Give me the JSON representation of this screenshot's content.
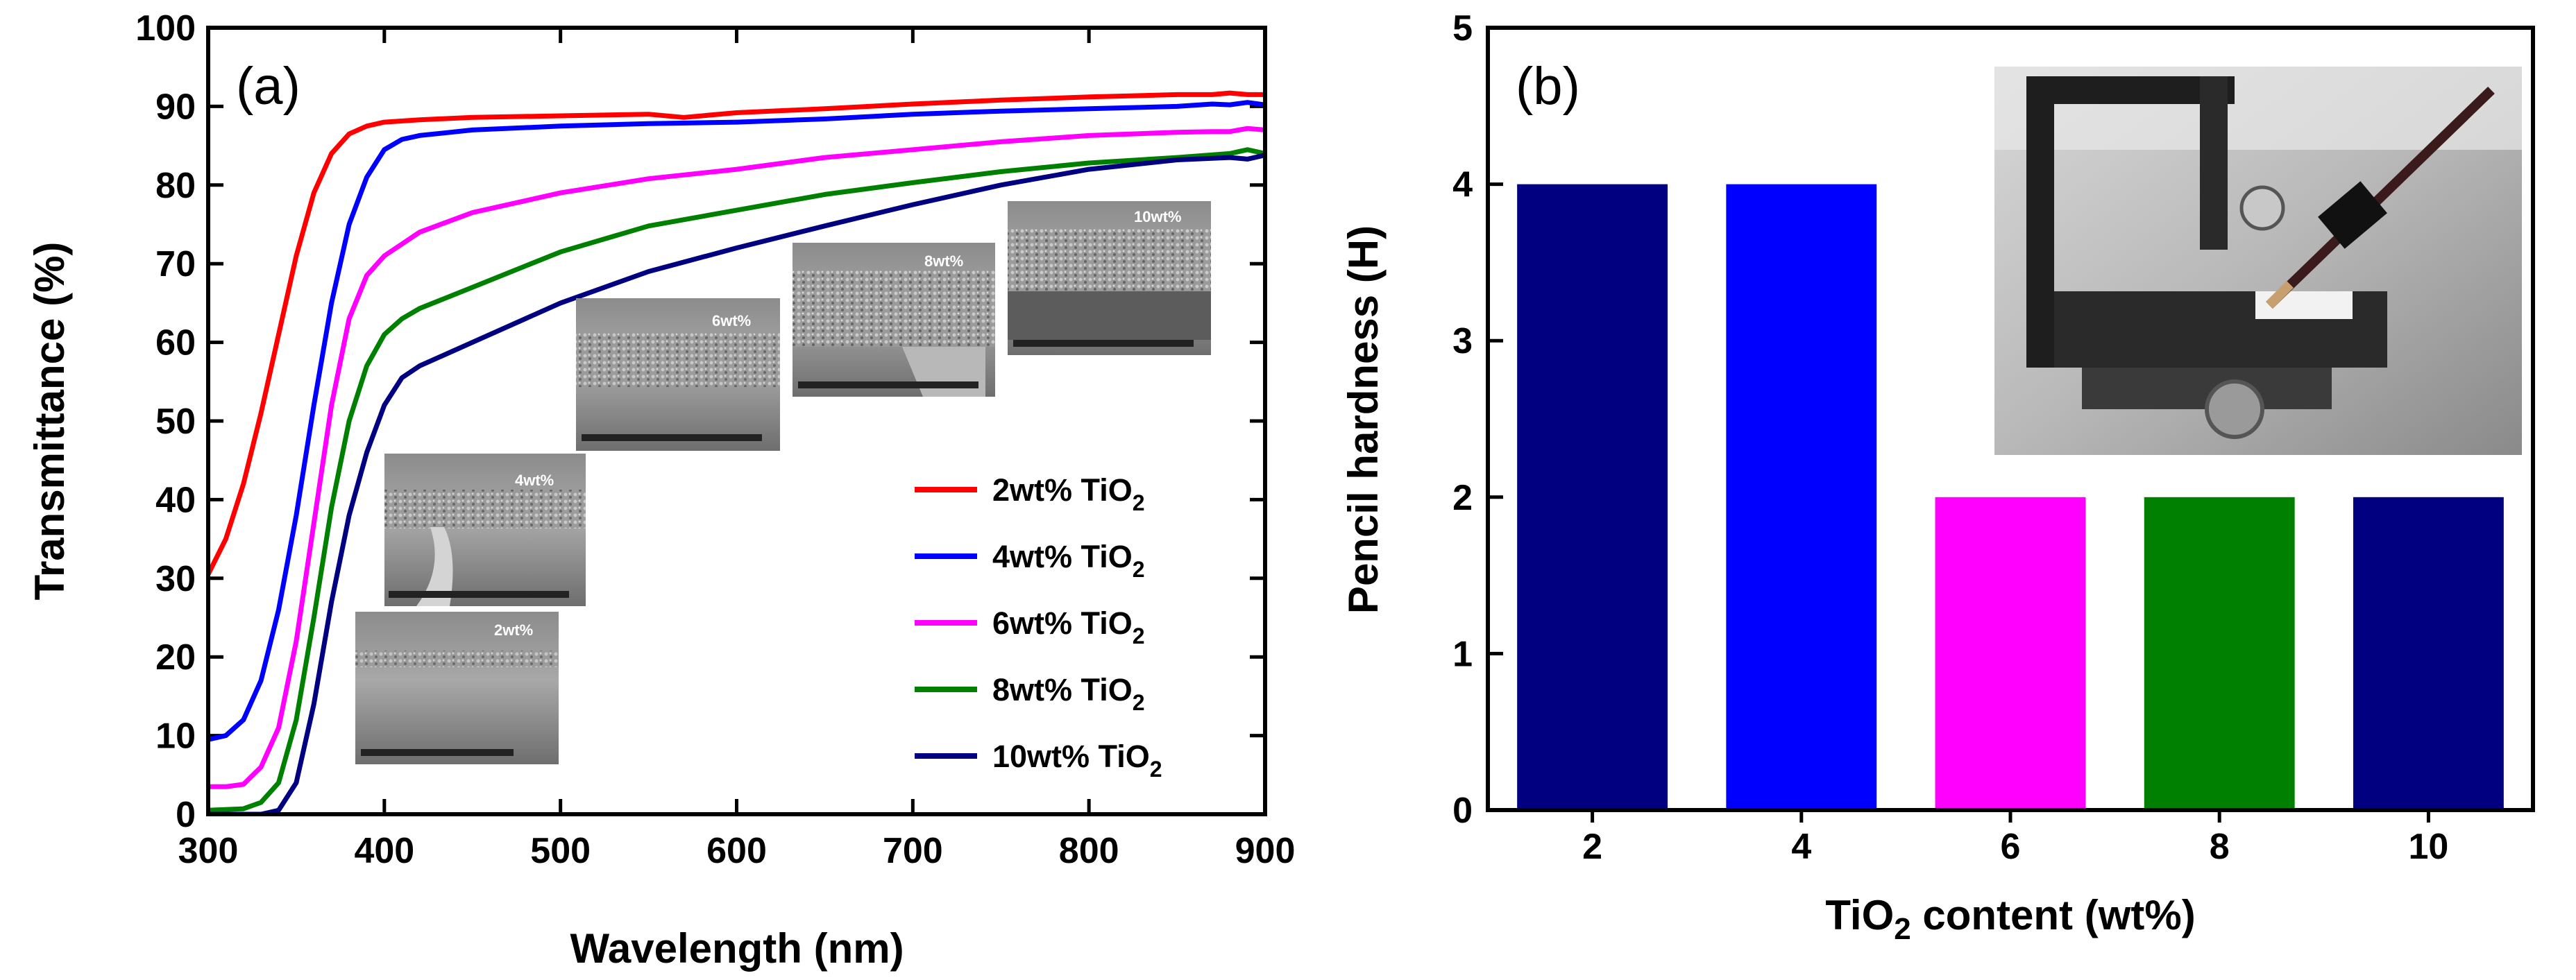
{
  "colors": {
    "c2": "#ff0000",
    "c4": "#0000ff",
    "c6": "#ff00ff",
    "c8": "#008000",
    "c10": "#000080"
  },
  "chart_data": [
    {
      "type": "line",
      "panel_label": "(a)",
      "xlabel": "Wavelength (nm)",
      "ylabel": "Transmittance (%)",
      "xlim": [
        300,
        900
      ],
      "ylim": [
        0,
        100
      ],
      "xticks": [
        300,
        400,
        500,
        600,
        700,
        800,
        900
      ],
      "yticks": [
        0,
        10,
        20,
        30,
        40,
        50,
        60,
        70,
        80,
        90,
        100
      ],
      "legend_position": "right-middle",
      "series": [
        {
          "name": "2wt% TiO2",
          "legend_main": "2wt% TiO",
          "legend_sub": "2",
          "color": "#ff0000",
          "x": [
            300,
            310,
            320,
            330,
            340,
            350,
            360,
            370,
            380,
            390,
            400,
            420,
            450,
            500,
            550,
            570,
            600,
            650,
            700,
            750,
            800,
            850,
            860,
            870,
            880,
            890,
            900
          ],
          "y": [
            30.5,
            35,
            42,
            51,
            61,
            71,
            79,
            84,
            86.5,
            87.5,
            88,
            88.3,
            88.6,
            88.8,
            89,
            88.6,
            89.2,
            89.7,
            90.3,
            90.8,
            91.2,
            91.5,
            91.5,
            91.5,
            91.7,
            91.5,
            91.5
          ]
        },
        {
          "name": "4wt% TiO2",
          "legend_main": "4wt% TiO",
          "legend_sub": "2",
          "color": "#0000ff",
          "x": [
            300,
            310,
            320,
            330,
            340,
            350,
            360,
            370,
            380,
            390,
            400,
            410,
            420,
            450,
            500,
            550,
            600,
            650,
            700,
            750,
            800,
            850,
            870,
            880,
            890,
            900
          ],
          "y": [
            9.5,
            10,
            12,
            17,
            26,
            38,
            52,
            65,
            75,
            81,
            84.5,
            85.8,
            86.3,
            87,
            87.5,
            87.8,
            88,
            88.4,
            89,
            89.4,
            89.7,
            90,
            90.3,
            90.2,
            90.5,
            90.2
          ]
        },
        {
          "name": "6wt% TiO2",
          "legend_main": "6wt% TiO",
          "legend_sub": "2",
          "color": "#ff00ff",
          "x": [
            300,
            310,
            320,
            330,
            340,
            350,
            360,
            370,
            380,
            390,
            400,
            410,
            420,
            450,
            500,
            550,
            600,
            650,
            700,
            750,
            800,
            850,
            870,
            880,
            890,
            900
          ],
          "y": [
            3.5,
            3.5,
            3.8,
            6,
            11,
            22,
            37,
            52,
            63,
            68.5,
            71,
            72.5,
            74,
            76.5,
            79,
            80.8,
            82,
            83.5,
            84.5,
            85.5,
            86.3,
            86.7,
            86.8,
            86.8,
            87.2,
            87
          ]
        },
        {
          "name": "8wt% TiO2",
          "legend_main": "8wt% TiO",
          "legend_sub": "2",
          "color": "#008000",
          "x": [
            300,
            320,
            330,
            340,
            350,
            360,
            370,
            380,
            390,
            400,
            410,
            420,
            450,
            500,
            550,
            600,
            650,
            700,
            750,
            800,
            850,
            880,
            890,
            900
          ],
          "y": [
            0.5,
            0.7,
            1.5,
            4,
            12,
            25,
            39,
            50,
            57,
            61,
            63,
            64.3,
            67,
            71.5,
            74.8,
            76.8,
            78.8,
            80.3,
            81.7,
            82.8,
            83.5,
            84,
            84.5,
            84
          ]
        },
        {
          "name": "10wt% TiO2",
          "legend_main": "10wt% TiO",
          "legend_sub": "2",
          "color": "#000080",
          "x": [
            300,
            330,
            340,
            350,
            360,
            370,
            380,
            390,
            400,
            410,
            420,
            450,
            500,
            550,
            600,
            650,
            700,
            750,
            800,
            850,
            880,
            890,
            900
          ],
          "y": [
            0,
            0,
            0.5,
            4,
            14,
            27,
            38,
            46,
            52,
            55.5,
            57,
            60,
            65,
            69,
            72,
            74.8,
            77.5,
            80,
            82,
            83.2,
            83.5,
            83.3,
            83.8
          ]
        }
      ]
    },
    {
      "type": "bar",
      "panel_label": "(b)",
      "xlabel_main": "TiO",
      "xlabel_sub": "2",
      "xlabel_rest": " content (wt%)",
      "ylabel": "Pencil hardness (H)",
      "ylim": [
        0,
        5
      ],
      "yticks": [
        0,
        1,
        2,
        3,
        4,
        5
      ],
      "categories": [
        "2",
        "4",
        "6",
        "8",
        "10"
      ],
      "values": [
        4,
        4,
        2,
        2,
        2
      ],
      "bar_colors": [
        "#000080",
        "#0000ff",
        "#ff00ff",
        "#008000",
        "#000080"
      ]
    }
  ],
  "sem_insets": [
    {
      "label": "2wt%"
    },
    {
      "label": "4wt%"
    },
    {
      "label": "6wt%"
    },
    {
      "label": "8wt%"
    },
    {
      "label": "10wt%"
    }
  ]
}
